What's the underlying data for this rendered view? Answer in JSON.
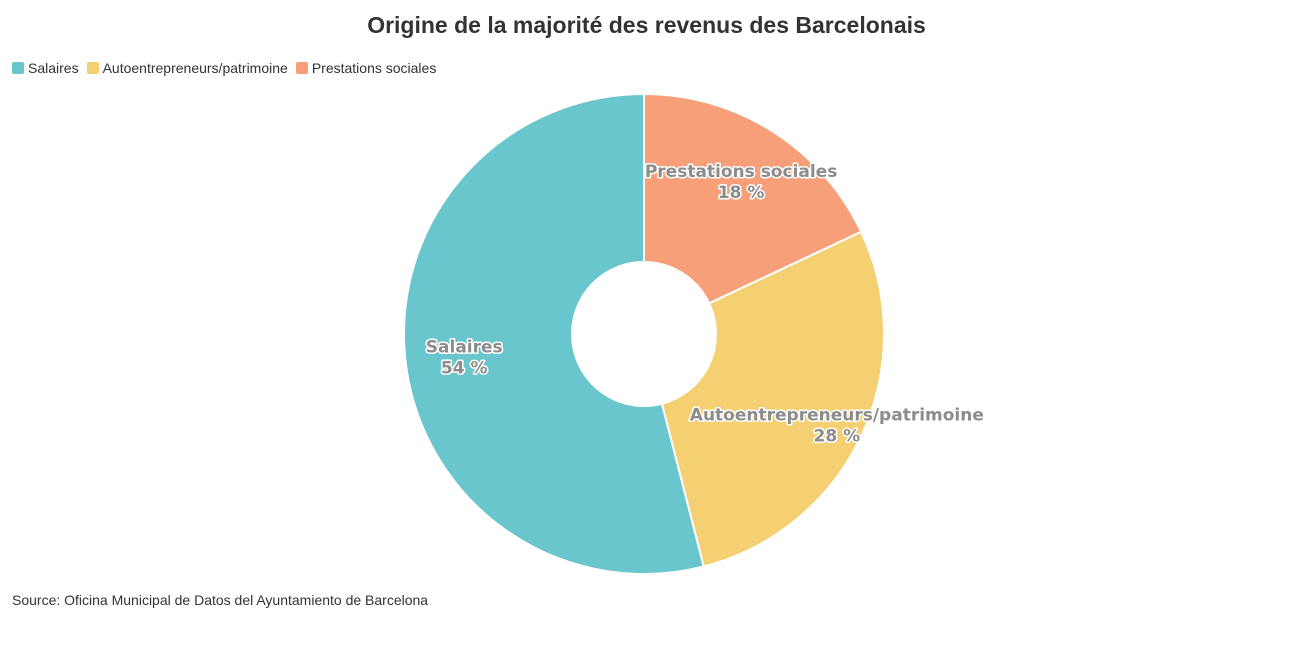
{
  "chart_data": {
    "type": "pie",
    "title": "Origine de la majorité des revenus des Barcelonais",
    "categories": [
      "Salaires",
      "Autoentrepreneurs/patrimoine",
      "Prestations sociales"
    ],
    "values": [
      54,
      28,
      18
    ],
    "value_labels": [
      "54 %",
      "28 %",
      "18 %"
    ],
    "colors": [
      "#69c6cc",
      "#f5d073",
      "#f69f78"
    ],
    "donut": true,
    "legend_position": "top-left",
    "source": "Source: Oficina Municipal de Datos del Ayuntamiento de Barcelona"
  }
}
